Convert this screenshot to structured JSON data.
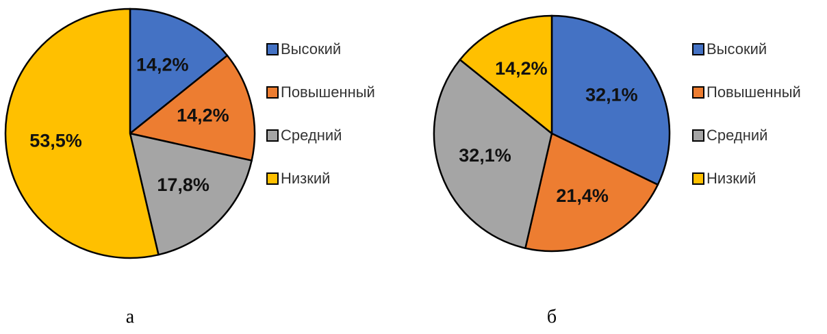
{
  "chart_data": [
    {
      "type": "pie",
      "caption": "а",
      "categories": [
        "Высокий",
        "Повышенный",
        "Средний",
        "Низкий"
      ],
      "values": [
        14.2,
        14.2,
        17.8,
        53.5
      ],
      "value_labels": [
        "14,2%",
        "14,2%",
        "17,8%",
        "53,5%"
      ],
      "colors": [
        "#4472c4",
        "#ed7d31",
        "#a5a5a5",
        "#ffc000"
      ]
    },
    {
      "type": "pie",
      "caption": "б",
      "categories": [
        "Высокий",
        "Повышенный",
        "Средний",
        "Низкий"
      ],
      "values": [
        32.1,
        21.4,
        32.1,
        14.2
      ],
      "value_labels": [
        "32,1%",
        "21,4%",
        "32,1%",
        "14,2%"
      ],
      "colors": [
        "#4472c4",
        "#ed7d31",
        "#a5a5a5",
        "#ffc000"
      ]
    }
  ]
}
